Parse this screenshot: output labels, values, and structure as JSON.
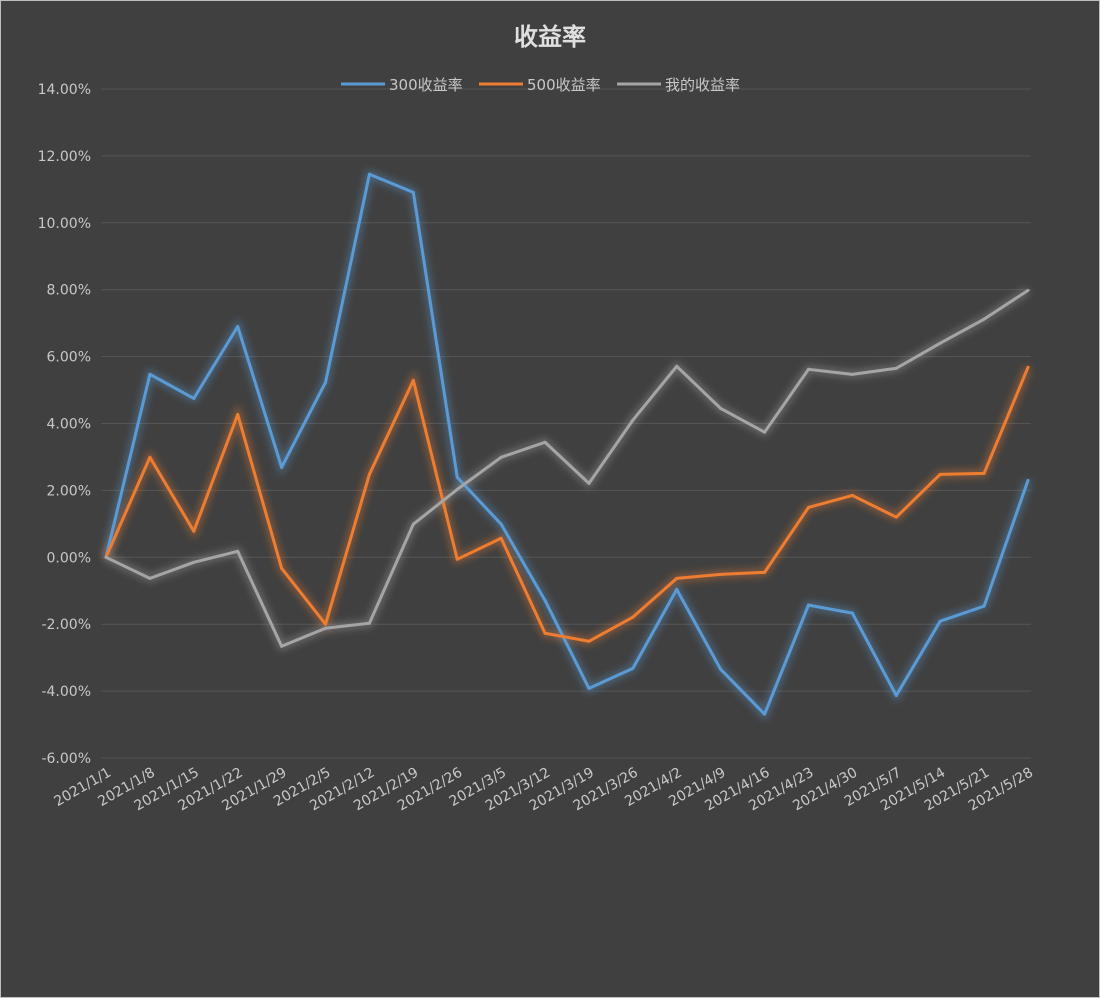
{
  "chart_data": {
    "type": "line",
    "title": "收益率",
    "xlabel": "",
    "ylabel": "",
    "ylim": [
      -6,
      14
    ],
    "yticks": [
      "-6.00%",
      "-4.00%",
      "-2.00%",
      "0.00%",
      "2.00%",
      "4.00%",
      "6.00%",
      "8.00%",
      "10.00%",
      "12.00%",
      "14.00%"
    ],
    "grid": true,
    "legend_position": "top",
    "x": [
      "2021/1/1",
      "2021/1/8",
      "2021/1/15",
      "2021/1/22",
      "2021/1/29",
      "2021/2/5",
      "2021/2/12",
      "2021/2/19",
      "2021/2/26",
      "2021/3/5",
      "2021/3/12",
      "2021/3/19",
      "2021/3/26",
      "2021/4/2",
      "2021/4/9",
      "2021/4/16",
      "2021/4/23",
      "2021/4/30",
      "2021/5/7",
      "2021/5/14",
      "2021/5/21",
      "2021/5/28"
    ],
    "series": [
      {
        "name": "300收益率",
        "color": "#5b9bd5",
        "values": [
          0,
          5.47,
          4.75,
          6.9,
          2.69,
          5.23,
          11.45,
          10.91,
          2.39,
          0.99,
          -1.29,
          -3.92,
          -3.32,
          -0.96,
          -3.35,
          -4.69,
          -1.43,
          -1.67,
          -4.13,
          -1.91,
          -1.46,
          2.3
        ]
      },
      {
        "name": "500收益率",
        "color": "#ed7d31",
        "values": [
          0,
          2.99,
          0.78,
          4.27,
          -0.33,
          -2.0,
          2.48,
          5.29,
          -0.06,
          0.57,
          -2.27,
          -2.51,
          -1.79,
          -0.63,
          -0.51,
          -0.45,
          1.49,
          1.85,
          1.2,
          2.48,
          2.51,
          5.68
        ]
      },
      {
        "name": "我的收益率",
        "color": "#a5a5a5",
        "values": [
          0,
          -0.63,
          -0.15,
          0.18,
          -2.66,
          -2.12,
          -1.97,
          0.99,
          2.03,
          2.99,
          3.44,
          2.21,
          4.1,
          5.71,
          4.45,
          3.74,
          5.62,
          5.47,
          5.65,
          6.4,
          7.12,
          7.98
        ]
      }
    ]
  }
}
